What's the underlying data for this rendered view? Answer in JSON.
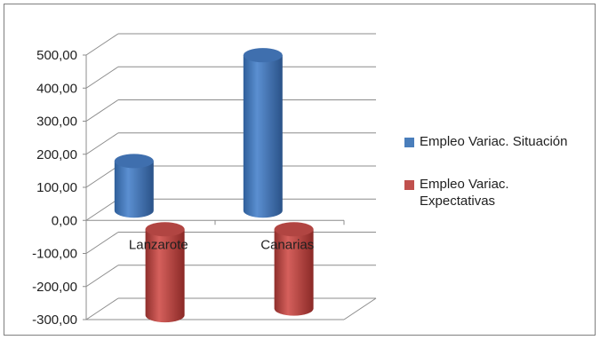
{
  "chart_data": {
    "type": "bar",
    "style": "3d-cylinder",
    "categories": [
      "Lanzarote",
      "Canarias"
    ],
    "series": [
      {
        "name": "Empleo Variac. Situación",
        "values": [
          150,
          470
        ],
        "color": "#4a7ebb"
      },
      {
        "name": "Empleo Variac. Expectativas",
        "values": [
          -260,
          -240
        ],
        "color": "#c0504d"
      }
    ],
    "ylim": [
      -300,
      500
    ],
    "yticks": [
      "500,00",
      "400,00",
      "300,00",
      "200,00",
      "100,00",
      "0,00",
      "-100,00",
      "-200,00",
      "-300,00"
    ],
    "ytick_values": [
      500,
      400,
      300,
      200,
      100,
      0,
      -100,
      -200,
      -300
    ],
    "grid": true,
    "legend_position": "right",
    "title": "",
    "xlabel": "",
    "ylabel": ""
  },
  "legend": {
    "items": [
      {
        "label_line1": "Empleo Variac. Situación",
        "label_line2": ""
      },
      {
        "label_line1": "Empleo Variac.",
        "label_line2": "Expectativas"
      }
    ]
  }
}
